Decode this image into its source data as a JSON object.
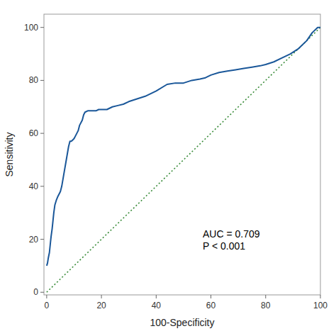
{
  "chart_data": {
    "type": "line",
    "xlabel": "100-Specificity",
    "ylabel": "Sensitivity",
    "xlim": [
      -1,
      100
    ],
    "ylim": [
      -1,
      105
    ],
    "xticks": [
      0,
      20,
      40,
      60,
      80,
      100
    ],
    "yticks": [
      0,
      20,
      40,
      60,
      80,
      100
    ],
    "grid": false,
    "series": [
      {
        "color": "#1a5799",
        "line_style": "solid",
        "x": [
          0,
          0.3,
          0.6,
          1.0,
          1.3,
          1.6,
          2.0,
          2.3,
          2.6,
          3.0,
          3.3,
          3.6,
          4.0,
          4.5,
          5.0,
          5.5,
          6.0,
          6.5,
          7.0,
          7.5,
          8.0,
          8.5,
          9.0,
          9.5,
          10.0,
          10.5,
          11.0,
          11.5,
          12.0,
          13.0,
          13.5,
          14.0,
          15.0,
          16.0,
          17.0,
          18.0,
          19.0,
          20.0,
          21.0,
          22.0,
          24.0,
          26.0,
          28.0,
          30.0,
          33.0,
          36.0,
          40.0,
          44.0,
          47.0,
          50.0,
          53.0,
          56.0,
          58.0,
          60.0,
          63.0,
          66.0,
          69.0,
          72.0,
          75.0,
          78.0,
          80.0,
          83.0,
          86.0,
          89.0,
          92.0,
          95.0,
          97.0,
          99.0,
          100.0
        ],
        "values": [
          10,
          11,
          13,
          15,
          18,
          21,
          24,
          27,
          30,
          33,
          34,
          35,
          36,
          37,
          38,
          40,
          43,
          46,
          49,
          52,
          55,
          57,
          57,
          57.5,
          58,
          59,
          60,
          61,
          63,
          65,
          67,
          68,
          68.5,
          68.5,
          68.5,
          68.5,
          69,
          69,
          69,
          69,
          70,
          70.5,
          71,
          72,
          73,
          74,
          76,
          78.5,
          79,
          79,
          80,
          80.5,
          81,
          82,
          83,
          83.5,
          84,
          84.5,
          85,
          85.5,
          86,
          87,
          88.5,
          90,
          92,
          95,
          98,
          100,
          100
        ]
      },
      {
        "color": "#3a8c3a",
        "line_style": "dotted",
        "x": [
          0,
          100
        ],
        "values": [
          0,
          100
        ]
      }
    ],
    "annotations": [
      {
        "text": "AUC = 0.709\nP < 0.001",
        "x": 57,
        "y": 15
      }
    ]
  }
}
